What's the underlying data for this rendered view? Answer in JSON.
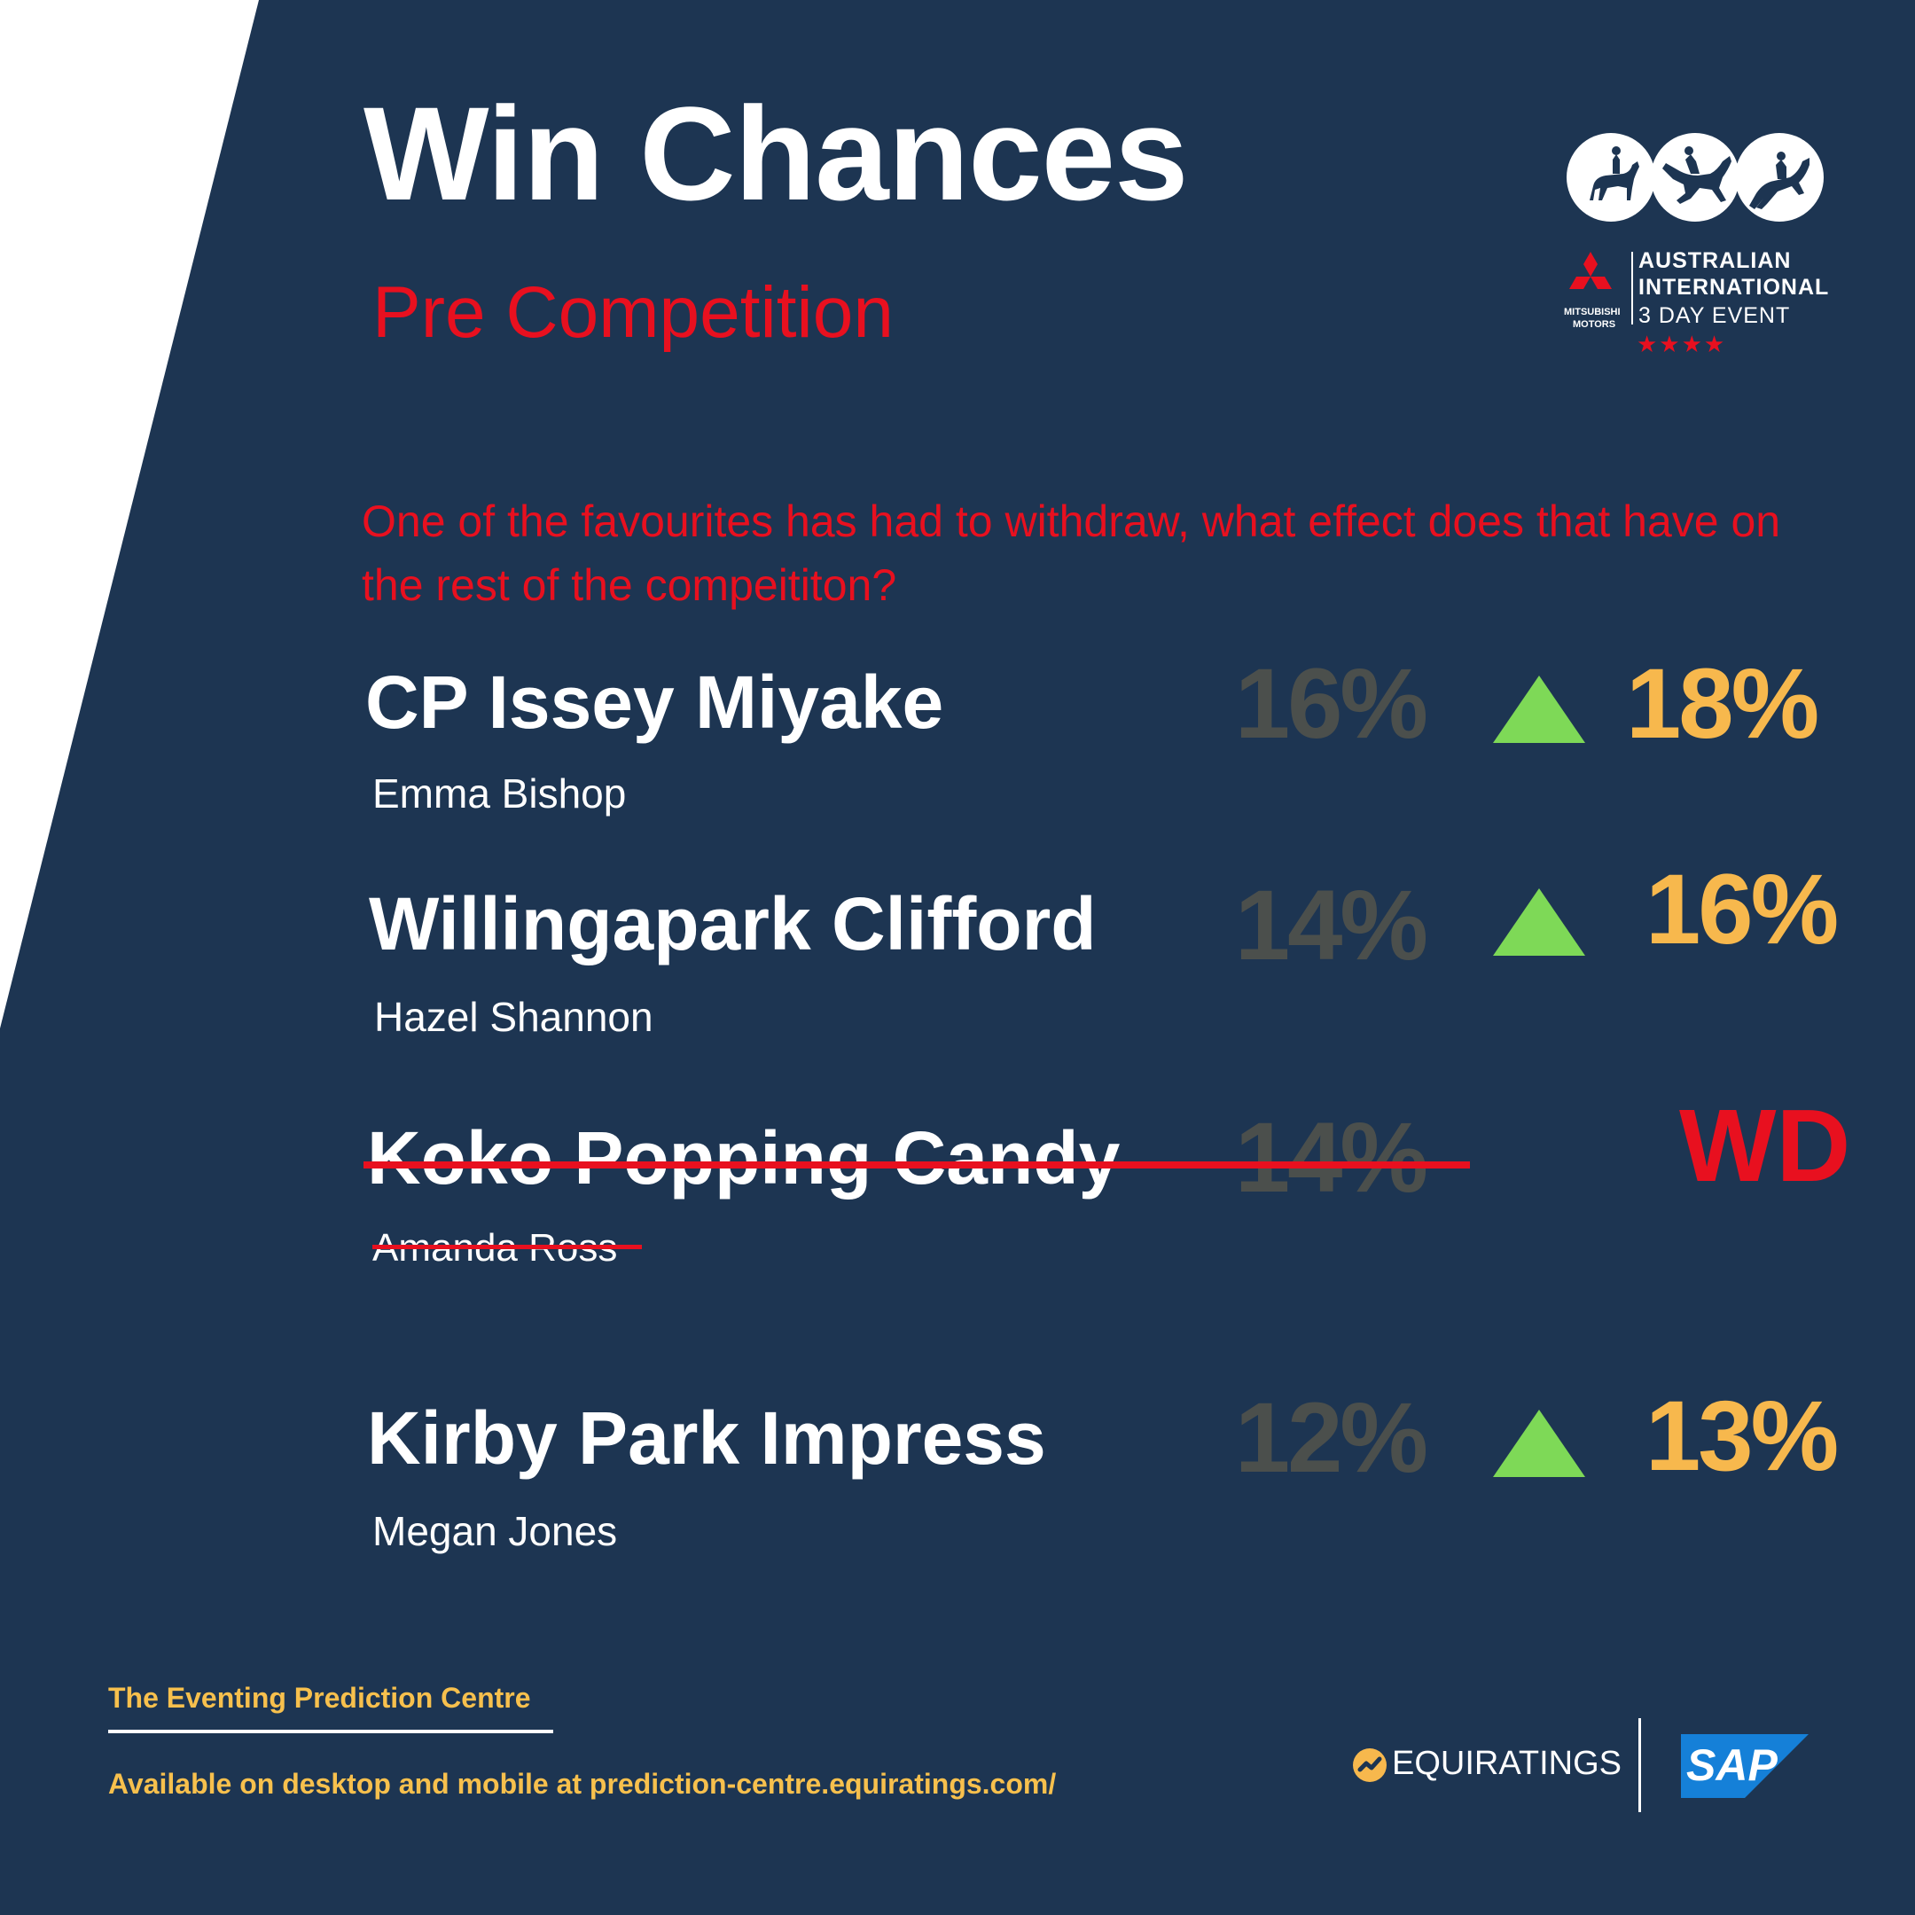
{
  "header": {
    "title": "Win Chances",
    "subtitle": "Pre Competition"
  },
  "intro": "One of the favourites has had to withdraw, what effect does that have on the rest of the compeititon?",
  "entries": [
    {
      "horse": "CP Issey Miyake",
      "rider": "Emma Bishop",
      "previous": "16%",
      "current": "18%",
      "trend": "up",
      "withdrawn": false
    },
    {
      "horse": "Willingapark Clifford",
      "rider": "Hazel Shannon",
      "previous": "14%",
      "current": "16%",
      "trend": "up",
      "withdrawn": false
    },
    {
      "horse": "Koko Popping Candy",
      "rider": "Amanda Ross",
      "previous": "14%",
      "current": "WD",
      "trend": "none",
      "withdrawn": true
    },
    {
      "horse": "Kirby Park Impress",
      "rider": "Megan Jones",
      "previous": "12%",
      "current": "13%",
      "trend": "up",
      "withdrawn": false
    }
  ],
  "event_logo": {
    "line1": "AUSTRALIAN",
    "line2": "INTERNATIONAL",
    "line3": "3 DAY EVENT",
    "sponsor_line1": "MITSUBISHI",
    "sponsor_line2": "MOTORS",
    "stars": "★★★★",
    "icons": [
      "dressage-icon",
      "cross-country-icon",
      "show-jumping-icon"
    ]
  },
  "footer": {
    "title": "The Eventing Prediction Centre",
    "link": "Available on desktop and mobile at prediction-centre.equiratings.com/",
    "brand1": "EQUIRATINGS",
    "brand2": "SAP"
  },
  "colors": {
    "background": "#1d3552",
    "accent_red": "#e8101f",
    "gold": "#f7b84d",
    "previous_grey": "#4b4f4c",
    "trend_green": "#7ed957",
    "sap_blue": "#1580d8"
  }
}
